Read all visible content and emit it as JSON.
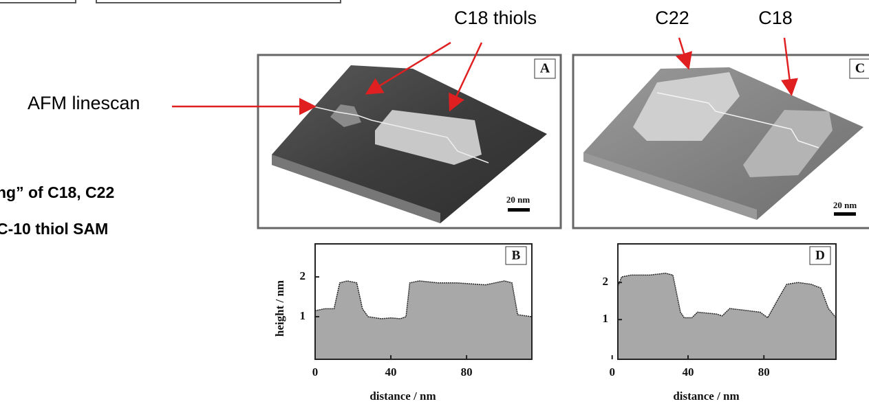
{
  "callouts": {
    "c18_thiols": "C18 thiols",
    "c22": "C22",
    "c18": "C18",
    "afm_linescan": "AFM linescan"
  },
  "body_text": [
    "ng” of C18, C22",
    "C-10 thiol SAM"
  ],
  "images": [
    {
      "panel": "A",
      "scale_bar": "20 nm"
    },
    {
      "panel": "C",
      "scale_bar": "20 nm"
    }
  ],
  "chart_data": [
    {
      "type": "area",
      "panel": "B",
      "xlabel": "distance / nm",
      "ylabel": "height / nm",
      "x": [
        0,
        5,
        10,
        13,
        17,
        22,
        25,
        28,
        35,
        40,
        45,
        48,
        50,
        55,
        65,
        75,
        90,
        100,
        104,
        107,
        114.5
      ],
      "values": [
        1.15,
        1.2,
        1.2,
        1.85,
        1.9,
        1.85,
        1.2,
        1.0,
        0.95,
        0.97,
        0.95,
        1.0,
        1.85,
        1.9,
        1.85,
        1.85,
        1.8,
        1.9,
        1.85,
        1.05,
        1.0
      ],
      "color": "#a8a8a8",
      "xlim": [
        0,
        114.5
      ],
      "ylim": [
        -0.07,
        2.83
      ],
      "xticks": [
        0,
        40,
        80
      ],
      "yticks": [
        1,
        2
      ]
    },
    {
      "type": "area",
      "panel": "D",
      "xlabel": "distance / nm",
      "x": [
        3,
        5,
        10,
        20,
        28,
        32,
        36,
        38,
        42,
        45,
        55,
        58,
        62,
        70,
        78,
        82,
        88,
        92,
        98,
        105,
        110,
        114,
        118
      ],
      "values": [
        1.9,
        2.15,
        2.2,
        2.2,
        2.25,
        2.2,
        1.2,
        1.05,
        1.05,
        1.2,
        1.15,
        1.1,
        1.3,
        1.25,
        1.2,
        1.05,
        1.6,
        1.95,
        2.0,
        1.95,
        1.85,
        1.3,
        1.05
      ],
      "color": "#a8a8a8",
      "xlim": [
        3,
        118
      ],
      "ylim": [
        -0.07,
        3.04
      ],
      "xticks": [
        0,
        40,
        80
      ],
      "yticks": [
        1,
        2
      ]
    }
  ]
}
